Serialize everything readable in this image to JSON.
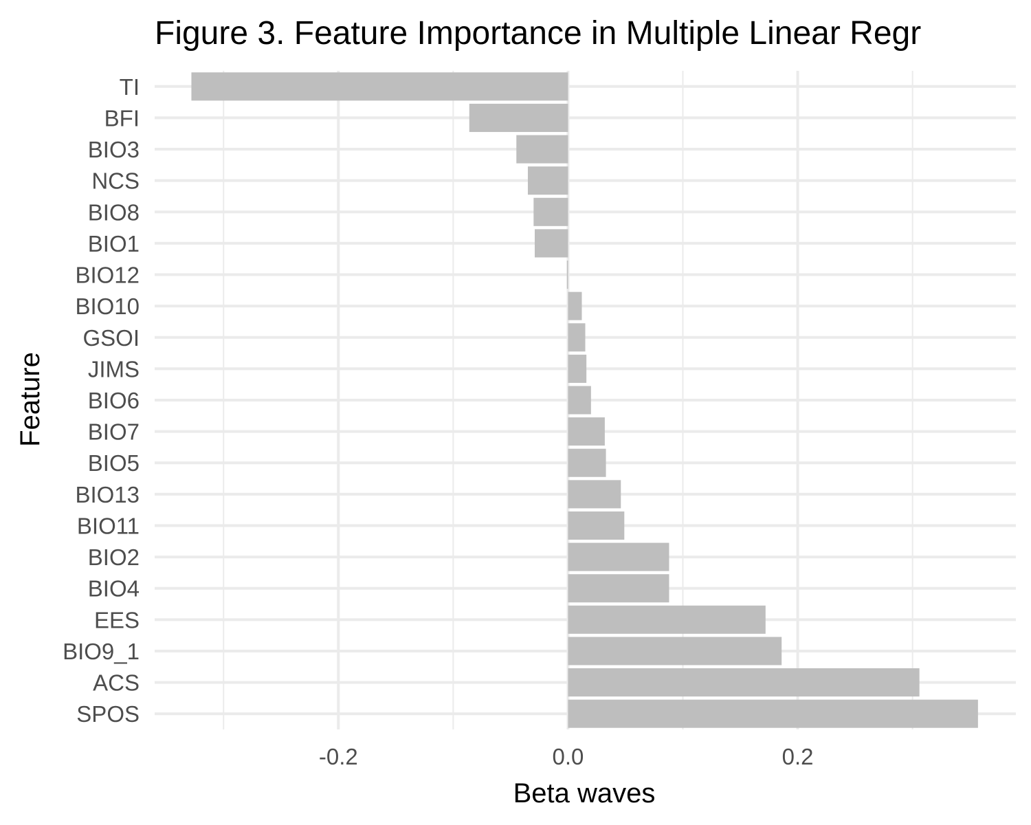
{
  "chart_data": {
    "type": "bar",
    "orientation": "horizontal",
    "title": "Figure 3. Feature Importance in Multiple Linear Regr",
    "xlabel": "Beta waves",
    "ylabel": "Feature",
    "categories": [
      "TI",
      "BFI",
      "BIO3",
      "NCS",
      "BIO8",
      "BIO1",
      "BIO12",
      "BIO10",
      "GSOI",
      "JIMS",
      "BIO6",
      "BIO7",
      "BIO5",
      "BIO13",
      "BIO11",
      "BIO2",
      "BIO4",
      "EES",
      "BIO9_1",
      "ACS",
      "SPOS"
    ],
    "values": [
      -0.328,
      -0.086,
      -0.045,
      -0.035,
      -0.03,
      -0.029,
      -0.001,
      0.012,
      0.015,
      0.016,
      0.02,
      0.032,
      0.033,
      0.046,
      0.049,
      0.088,
      0.088,
      0.172,
      0.186,
      0.306,
      0.357
    ],
    "xlim": [
      -0.36,
      0.39
    ],
    "x_ticks": [
      -0.2,
      0.0,
      0.2
    ],
    "x_tick_labels": [
      "-0.2",
      "0.0",
      "0.2"
    ],
    "grid": true,
    "legend": "none",
    "bar_color": "#bebebe",
    "grid_color": "#ebebeb"
  }
}
